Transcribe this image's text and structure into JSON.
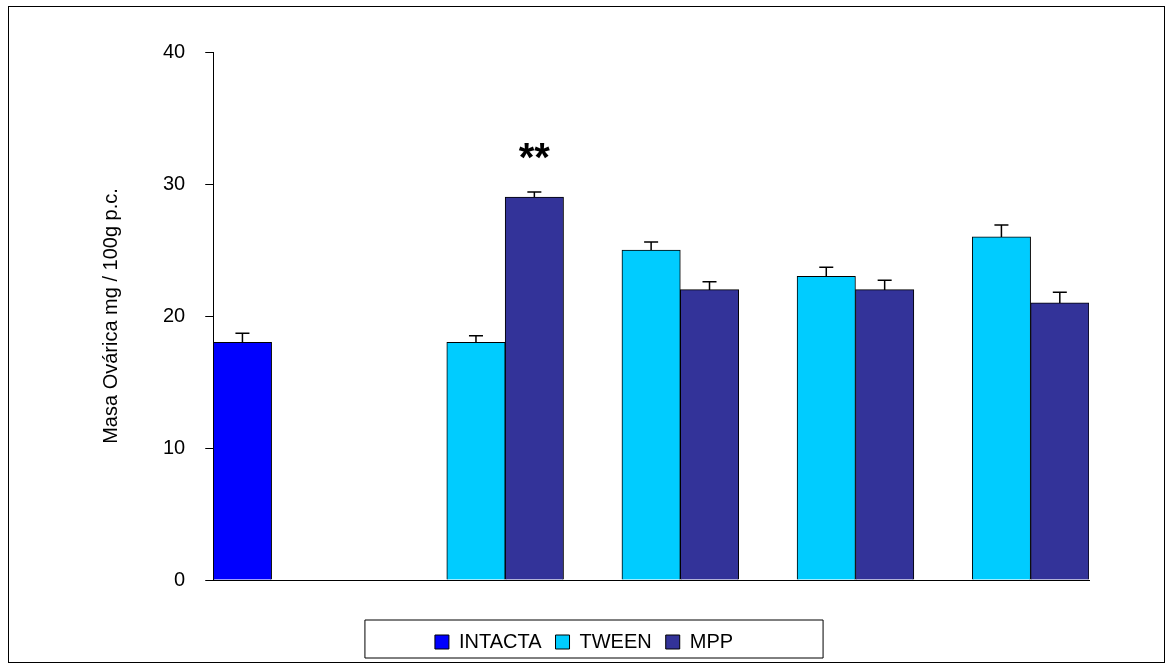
{
  "chart_data": {
    "type": "bar",
    "ylabel": "Masa Ovárica mg / 100g p.c.",
    "categories": [
      null,
      null,
      null,
      null,
      null
    ],
    "series": [
      {
        "name": "INTACTA",
        "color": "#0000ff",
        "values": [
          18,
          null,
          null,
          null,
          null
        ],
        "errors": [
          0.7,
          null,
          null,
          null,
          null
        ]
      },
      {
        "name": "TWEEN",
        "color": "#00ccff",
        "values": [
          null,
          18,
          25,
          23,
          26
        ],
        "errors": [
          null,
          0.5,
          0.6,
          0.7,
          0.9
        ]
      },
      {
        "name": "MPP",
        "color": "#333399",
        "values": [
          null,
          29,
          22,
          22,
          21
        ],
        "errors": [
          null,
          0.4,
          0.6,
          0.7,
          0.8
        ]
      }
    ],
    "ylim": [
      0,
      40
    ],
    "yticks": [
      0,
      10,
      20,
      30,
      40
    ],
    "grid": false,
    "legend": "bottom",
    "annotations": [
      "**"
    ]
  }
}
